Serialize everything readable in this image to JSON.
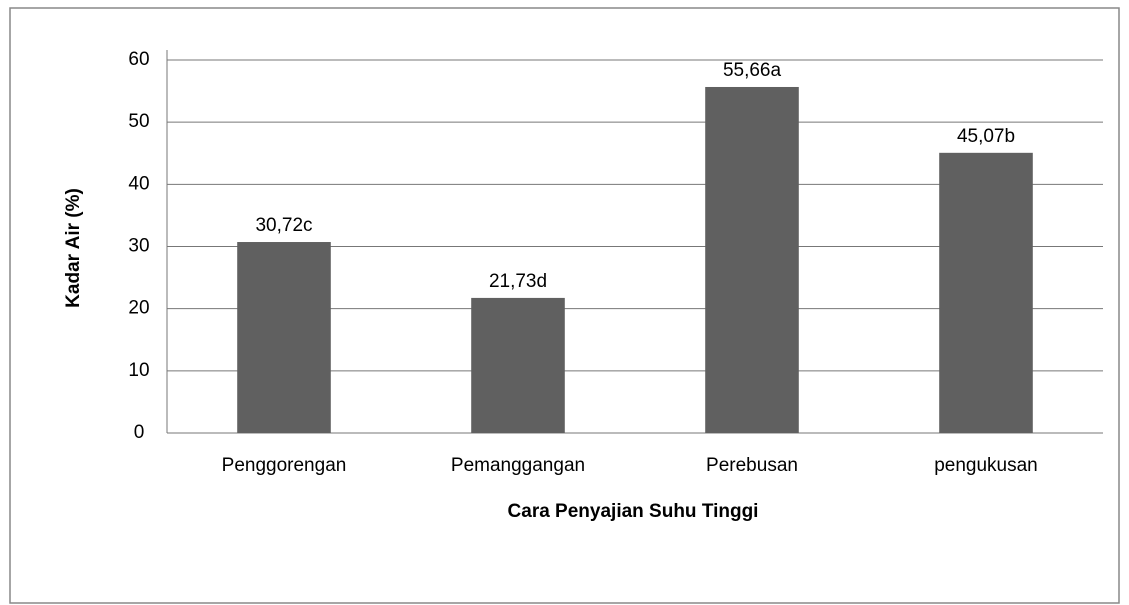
{
  "chart_data": {
    "type": "bar",
    "x_label": "Cara Penyajian Suhu Tinggi",
    "y_label": "Kadar Air (%)",
    "categories": [
      "Penggorengan",
      "Pemanggangan",
      "Perebusan",
      "pengukusan"
    ],
    "values": [
      30.72,
      21.73,
      55.66,
      45.07
    ],
    "value_labels": [
      "30,72c",
      "21,73d",
      "55,66a",
      "45,07b"
    ],
    "color": "#606060",
    "ylim": [
      0,
      60
    ],
    "yticks": [
      0,
      10,
      20,
      30,
      40,
      50,
      60
    ],
    "grid": true
  }
}
